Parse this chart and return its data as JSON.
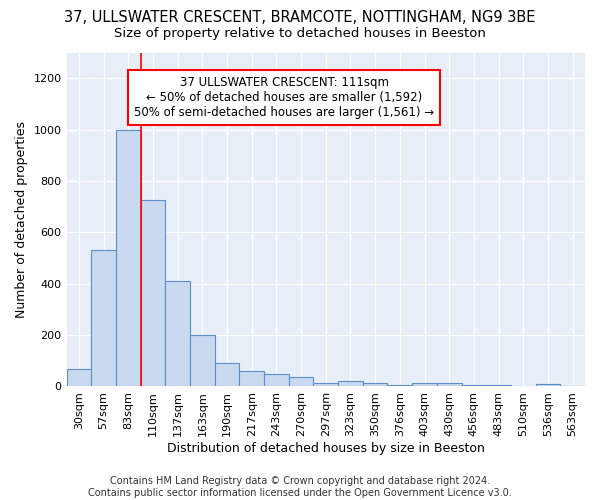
{
  "title": "37, ULLSWATER CRESCENT, BRAMCOTE, NOTTINGHAM, NG9 3BE",
  "subtitle": "Size of property relative to detached houses in Beeston",
  "xlabel": "Distribution of detached houses by size in Beeston",
  "ylabel": "Number of detached properties",
  "bar_color": "#c9d9f0",
  "bar_edge_color": "#5b8fc9",
  "bar_edge_width": 0.8,
  "background_color": "#e8eef8",
  "grid_color": "#ffffff",
  "categories": [
    "30sqm",
    "57sqm",
    "83sqm",
    "110sqm",
    "137sqm",
    "163sqm",
    "190sqm",
    "217sqm",
    "243sqm",
    "270sqm",
    "297sqm",
    "323sqm",
    "350sqm",
    "376sqm",
    "403sqm",
    "430sqm",
    "456sqm",
    "483sqm",
    "510sqm",
    "536sqm",
    "563sqm"
  ],
  "values": [
    67,
    530,
    1000,
    725,
    410,
    200,
    90,
    60,
    50,
    35,
    15,
    20,
    15,
    5,
    15,
    15,
    5,
    5,
    2,
    10,
    2
  ],
  "red_line_x": 2.5,
  "ylim": [
    0,
    1300
  ],
  "yticks": [
    0,
    200,
    400,
    600,
    800,
    1000,
    1200
  ],
  "annotation_title": "37 ULLSWATER CRESCENT: 111sqm",
  "annotation_line1": "← 50% of detached houses are smaller (1,592)",
  "annotation_line2": "50% of semi-detached houses are larger (1,561) →",
  "footer_line1": "Contains HM Land Registry data © Crown copyright and database right 2024.",
  "footer_line2": "Contains public sector information licensed under the Open Government Licence v3.0.",
  "title_fontsize": 10.5,
  "subtitle_fontsize": 9.5,
  "xlabel_fontsize": 9,
  "ylabel_fontsize": 9,
  "tick_fontsize": 8,
  "annotation_fontsize": 8.5,
  "footer_fontsize": 7
}
